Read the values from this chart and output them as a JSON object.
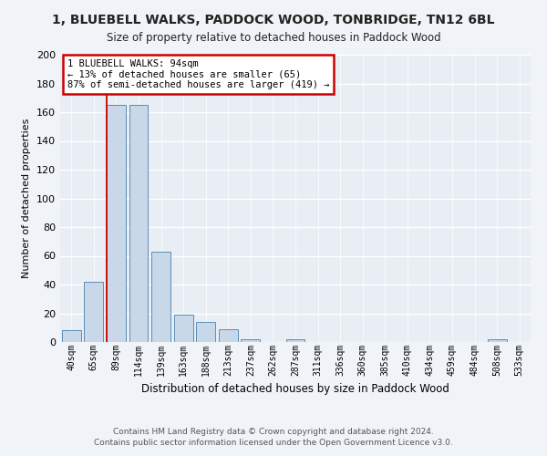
{
  "title": "1, BLUEBELL WALKS, PADDOCK WOOD, TONBRIDGE, TN12 6BL",
  "subtitle": "Size of property relative to detached houses in Paddock Wood",
  "xlabel": "Distribution of detached houses by size in Paddock Wood",
  "ylabel": "Number of detached properties",
  "footer_line1": "Contains HM Land Registry data © Crown copyright and database right 2024.",
  "footer_line2": "Contains public sector information licensed under the Open Government Licence v3.0.",
  "bar_labels": [
    "40sqm",
    "65sqm",
    "89sqm",
    "114sqm",
    "139sqm",
    "163sqm",
    "188sqm",
    "213sqm",
    "237sqm",
    "262sqm",
    "287sqm",
    "311sqm",
    "336sqm",
    "360sqm",
    "385sqm",
    "410sqm",
    "434sqm",
    "459sqm",
    "484sqm",
    "508sqm",
    "533sqm"
  ],
  "bar_values": [
    8,
    42,
    165,
    165,
    63,
    19,
    14,
    9,
    2,
    0,
    2,
    0,
    0,
    0,
    0,
    0,
    0,
    0,
    0,
    2,
    0
  ],
  "bar_color": "#c8d8e8",
  "bar_edge_color": "#5b8db8",
  "background_color": "#e8eef4",
  "grid_color": "#ffffff",
  "annotation_text": "1 BLUEBELL WALKS: 94sqm\n← 13% of detached houses are smaller (65)\n87% of semi-detached houses are larger (419) →",
  "annotation_box_color": "#ffffff",
  "annotation_box_edge_color": "#cc0000",
  "red_line_bar_index": 2,
  "ylim": [
    0,
    200
  ],
  "yticks": [
    0,
    20,
    40,
    60,
    80,
    100,
    120,
    140,
    160,
    180,
    200
  ],
  "fig_bg": "#f0f4f8"
}
